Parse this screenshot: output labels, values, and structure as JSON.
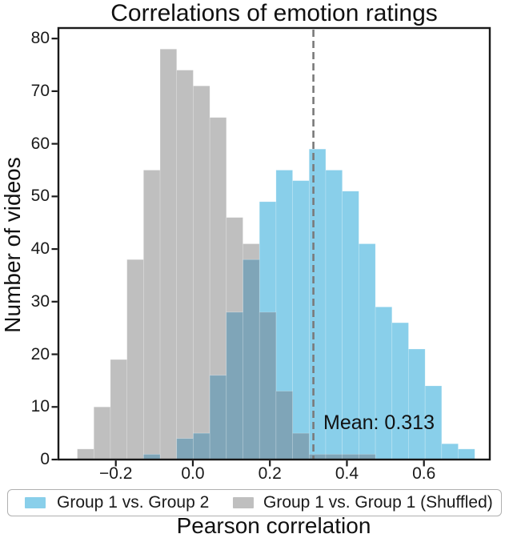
{
  "chart_data": {
    "type": "histogram",
    "title": "Correlations of emotion ratings",
    "xlabel": "Pearson correlation",
    "ylabel": "Number of videos",
    "xlim": [
      -0.349,
      0.771
    ],
    "ylim": [
      0,
      82
    ],
    "grid": false,
    "legend_position": "below-axis",
    "bin_width": 0.043,
    "xticks": {
      "values": [
        -0.2,
        0.0,
        0.2,
        0.4,
        0.6
      ],
      "labels": [
        "−0.2",
        "0.0",
        "0.2",
        "0.4",
        "0.6"
      ]
    },
    "yticks": {
      "values": [
        0,
        10,
        20,
        30,
        40,
        50,
        60,
        70,
        80
      ],
      "labels": [
        "0",
        "10",
        "20",
        "30",
        "40",
        "50",
        "60",
        "70",
        "80"
      ]
    },
    "series": [
      {
        "name": "Group 1 vs. Group 2",
        "color": "#89CFEA",
        "bin_start": -0.128,
        "counts": [
          1,
          0,
          4,
          5,
          16,
          28,
          38,
          49,
          55,
          53,
          59,
          55,
          51,
          41,
          29,
          26,
          21,
          14,
          3,
          2
        ]
      },
      {
        "name": "Group 1 vs. Group 1 (Shuffled)",
        "color": "#BFBFBF",
        "bin_start": -0.3,
        "counts": [
          2,
          10,
          19,
          38,
          55,
          78,
          74,
          71,
          65,
          46,
          41,
          28,
          13,
          5,
          1,
          1,
          1,
          1
        ]
      }
    ],
    "overlap_color": "#7FA5B8",
    "mean_line": {
      "x": 0.313,
      "label": "Mean: 0.313",
      "color": "#7a7a7a",
      "style": "dashed"
    }
  },
  "legend": {
    "items": [
      {
        "label": "Group 1 vs. Group 2",
        "color": "#89CFEA"
      },
      {
        "label": "Group 1 vs. Group 1 (Shuffled)",
        "color": "#BFBFBF"
      }
    ]
  },
  "colors": {
    "spine": "#1a1a1a",
    "background": "#ffffff"
  }
}
